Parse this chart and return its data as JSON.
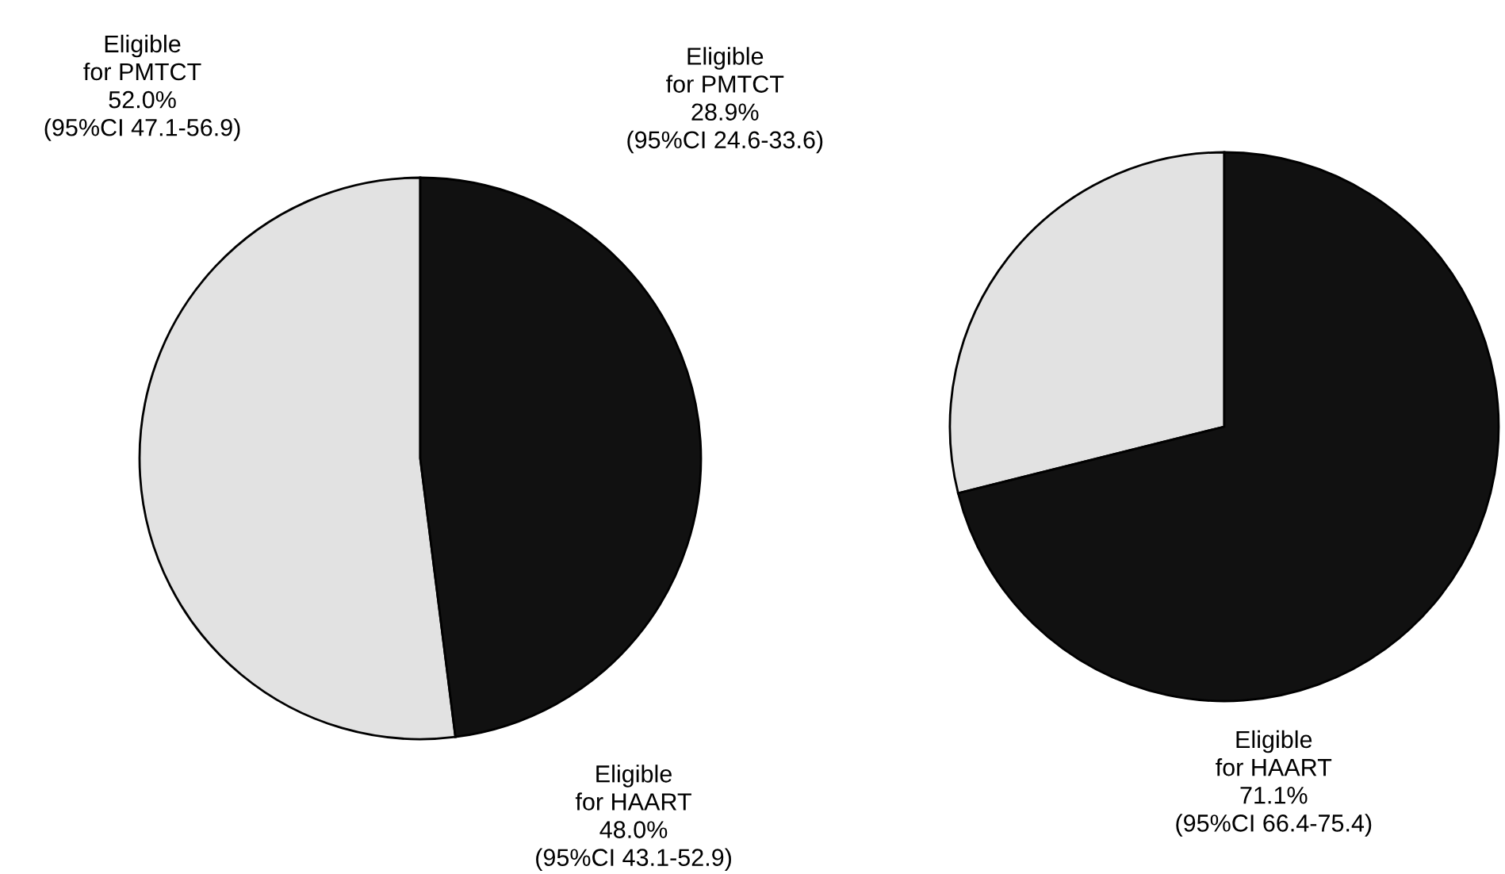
{
  "chart_data": [
    {
      "type": "pie",
      "categories": [
        "Eligible\nfor PMTCT",
        "Eligible\nfor HAART"
      ],
      "values": [
        52.0,
        48.0
      ],
      "colors": [
        "#e2e2e2",
        "#111111"
      ],
      "value_labels": [
        "52.0%\n(95%CI 47.1-56.9)",
        "48.0%\n(95%CI 43.1-52.9)"
      ]
    },
    {
      "type": "pie",
      "categories": [
        "Eligible\nfor PMTCT",
        "Eligible\nfor HAART"
      ],
      "values": [
        28.9,
        71.1
      ],
      "colors": [
        "#e2e2e2",
        "#111111"
      ],
      "value_labels": [
        "28.9%\n(95%CI 24.6-33.6)",
        "71.1%\n(95%CI 66.4-75.4)"
      ]
    }
  ]
}
